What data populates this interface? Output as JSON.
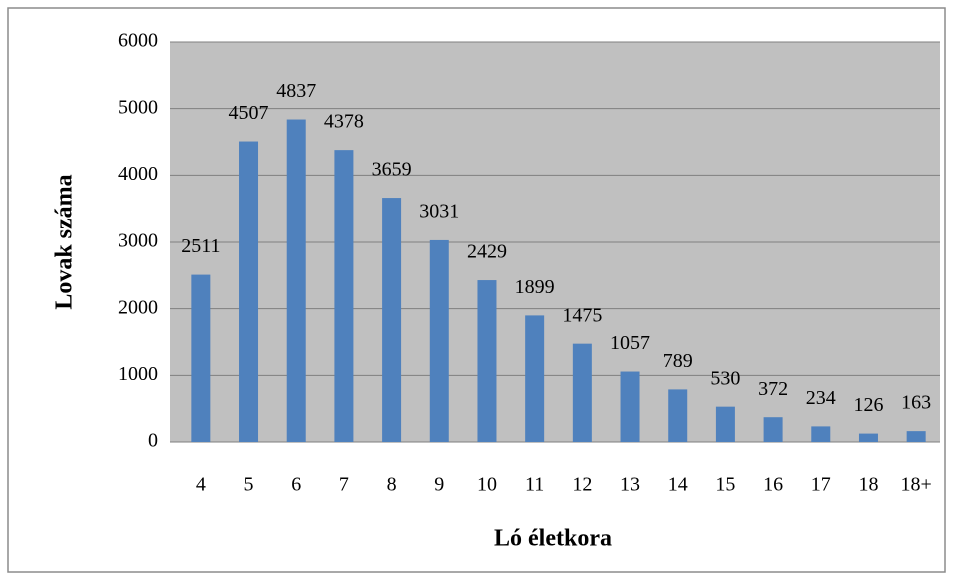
{
  "chart_data": {
    "type": "bar",
    "categories": [
      "4",
      "5",
      "6",
      "7",
      "8",
      "9",
      "10",
      "11",
      "12",
      "13",
      "14",
      "15",
      "16",
      "17",
      "18",
      "18+"
    ],
    "values": [
      2511,
      4507,
      4837,
      4378,
      3659,
      3031,
      2429,
      1899,
      1475,
      1057,
      789,
      530,
      372,
      234,
      126,
      163
    ],
    "color": "#4f81bd",
    "ylim": [
      0,
      6000
    ],
    "yticks": [
      0,
      1000,
      2000,
      3000,
      4000,
      5000,
      6000
    ],
    "grid": true,
    "y_label": "Lovak száma",
    "x_label": "Ló életkora"
  }
}
